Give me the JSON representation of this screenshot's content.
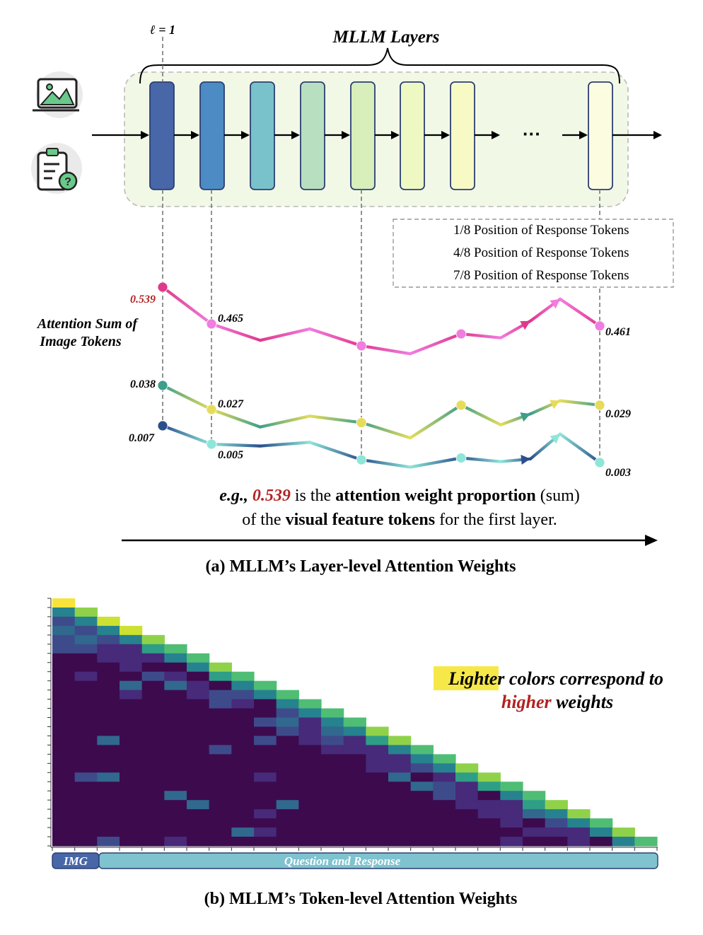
{
  "top": {
    "layer_marker": "ℓ = 1",
    "layers_title": "MLLM Layers",
    "ellipsis": "···",
    "image_icon": "image-icon",
    "question_icon": "clipboard-question-icon",
    "layer_colors": [
      "#4767a8",
      "#4d8bc4",
      "#79c2cb",
      "#b8e0c0",
      "#d8eebb",
      "#eef8c3",
      "#f8fac6",
      "#fcfce0"
    ],
    "panel_bg": "#f2f8e6"
  },
  "legend": {
    "items": [
      {
        "label": "1/8 Position of Response Tokens",
        "from": "#e0388a",
        "to": "#f07de0"
      },
      {
        "label": "4/8 Position of Response Tokens",
        "from": "#3d9e8a",
        "to": "#e6dc5a"
      },
      {
        "label": "7/8 Position of Response Tokens",
        "from": "#2b4f8c",
        "to": "#8ee6d8"
      }
    ]
  },
  "chart_data": {
    "type": "line",
    "ylabel": "Attention Sum of\nImage Tokens",
    "series": [
      {
        "name": "1/8 Position of Response Tokens",
        "values": [
          0.539,
          0.465,
          0.432,
          0.455,
          0.421,
          0.405,
          0.445,
          0.437,
          0.471,
          0.515,
          0.461
        ]
      },
      {
        "name": "4/8 Position of Response Tokens",
        "values": [
          0.038,
          0.027,
          0.019,
          0.024,
          0.021,
          0.014,
          0.029,
          0.02,
          0.025,
          0.031,
          0.029
        ]
      },
      {
        "name": "7/8 Position of Response Tokens",
        "values": [
          0.007,
          0.005,
          0.0048,
          0.0052,
          0.0033,
          0.0025,
          0.0035,
          0.0031,
          0.0034,
          0.0061,
          0.003
        ]
      }
    ],
    "labels": {
      "first_1": "0.539",
      "second_1": "0.465",
      "last_1": "0.461",
      "first_4": "0.038",
      "second_4": "0.027",
      "last_4": "0.029",
      "first_7": "0.007",
      "second_7": "0.005",
      "last_7": "0.003"
    },
    "highlight_color": "#b22222"
  },
  "example": {
    "eg": "e.g., ",
    "value": "0.539",
    "t1": " is the ",
    "b1": "attention weight proportion",
    "t2": " (sum)",
    "t3": "of the ",
    "b2": "visual feature tokens",
    "t4": " for the first layer."
  },
  "caption_a": "(a) MLLM’s Layer-level Attention Weights",
  "heatmap": {
    "note_word1": "Lighter",
    "note_rest1": " colors correspond to",
    "note_word2": "higher",
    "note_rest2": " weights",
    "highlight_bg": "#f7e84a",
    "img_label": "IMG",
    "qr_label": "Question and Response",
    "img_color": "#4767a8",
    "qr_color": "#7ec3cf",
    "colormap": [
      "#3d0a4e",
      "#472a7a",
      "#3e4b8b",
      "#31688e",
      "#26828e",
      "#2e9e86",
      "#4fbd74",
      "#8fd24a",
      "#cce131",
      "#f7e43a"
    ]
  },
  "caption_b": "(b) MLLM’s Token-level Attention Weights"
}
